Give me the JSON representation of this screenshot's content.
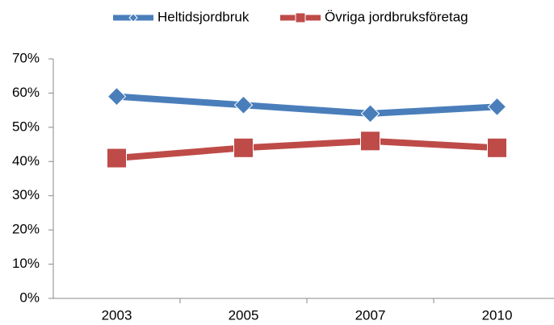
{
  "chart_data": {
    "type": "line",
    "categories": [
      "2003",
      "2005",
      "2007",
      "2010"
    ],
    "series": [
      {
        "name": "Heltidsjordbruk",
        "color": "#4a7ebb",
        "marker": "diamond",
        "values": [
          59,
          56.5,
          54,
          56
        ]
      },
      {
        "name": "Övriga jordbruksföretag",
        "color": "#be4b48",
        "marker": "square",
        "values": [
          41,
          44,
          46,
          44
        ]
      }
    ],
    "ylim": [
      0,
      70
    ],
    "yticks": [
      {
        "value": 0,
        "label": "0%"
      },
      {
        "value": 10,
        "label": "10%"
      },
      {
        "value": 20,
        "label": "20%"
      },
      {
        "value": 30,
        "label": "30%"
      },
      {
        "value": 40,
        "label": "40%"
      },
      {
        "value": 50,
        "label": "50%"
      },
      {
        "value": 60,
        "label": "60%"
      },
      {
        "value": 70,
        "label": "70%"
      }
    ],
    "grid": false,
    "legend": "top"
  }
}
